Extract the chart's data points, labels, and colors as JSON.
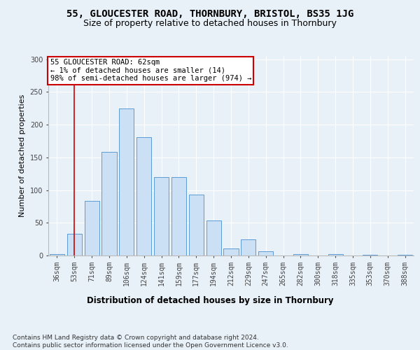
{
  "title1": "55, GLOUCESTER ROAD, THORNBURY, BRISTOL, BS35 1JG",
  "title2": "Size of property relative to detached houses in Thornbury",
  "xlabel": "Distribution of detached houses by size in Thornbury",
  "ylabel": "Number of detached properties",
  "categories": [
    "36sqm",
    "53sqm",
    "71sqm",
    "89sqm",
    "106sqm",
    "124sqm",
    "141sqm",
    "159sqm",
    "177sqm",
    "194sqm",
    "212sqm",
    "229sqm",
    "247sqm",
    "265sqm",
    "282sqm",
    "300sqm",
    "318sqm",
    "335sqm",
    "353sqm",
    "370sqm",
    "388sqm"
  ],
  "values": [
    2,
    33,
    83,
    158,
    225,
    181,
    120,
    120,
    93,
    53,
    11,
    25,
    6,
    0,
    2,
    0,
    2,
    0,
    1,
    0,
    1
  ],
  "bar_color": "#cce0f5",
  "bar_edge_color": "#5b9bd5",
  "vline_x": 1,
  "vline_color": "#cc0000",
  "annotation_line1": "55 GLOUCESTER ROAD: 62sqm",
  "annotation_line2": "← 1% of detached houses are smaller (14)",
  "annotation_line3": "98% of semi-detached houses are larger (974) →",
  "annotation_box_color": "#cc0000",
  "footer": "Contains HM Land Registry data © Crown copyright and database right 2024.\nContains public sector information licensed under the Open Government Licence v3.0.",
  "ylim": [
    0,
    305
  ],
  "background_color": "#e8f0f8",
  "title1_fontsize": 10,
  "title2_fontsize": 9,
  "xlabel_fontsize": 8.5,
  "ylabel_fontsize": 8,
  "tick_fontsize": 7,
  "annotation_fontsize": 7.5,
  "footer_fontsize": 6.5
}
